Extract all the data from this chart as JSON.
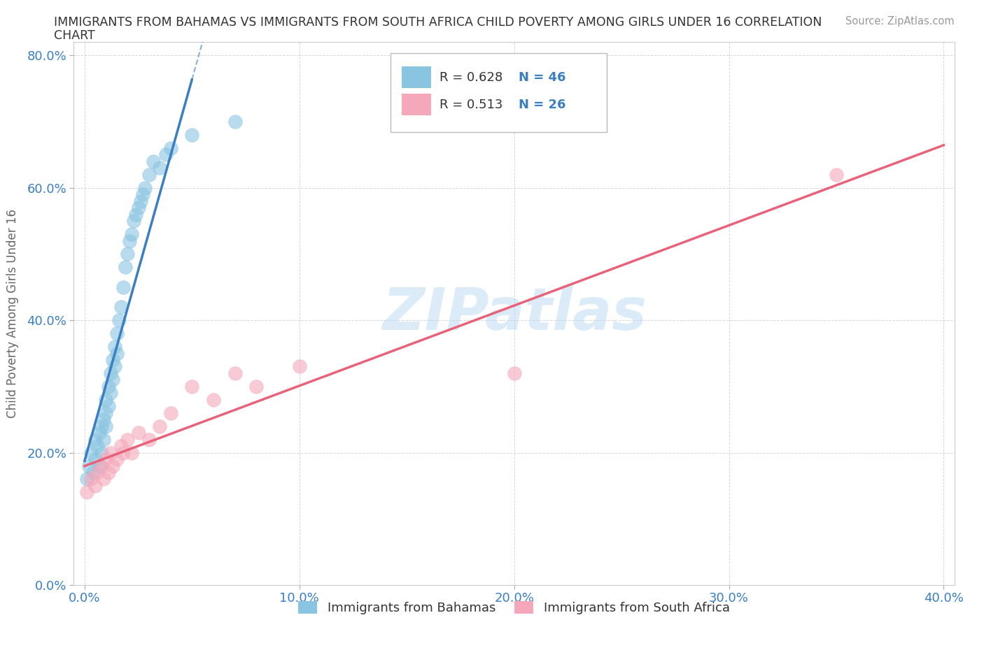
{
  "title_line1": "IMMIGRANTS FROM BAHAMAS VS IMMIGRANTS FROM SOUTH AFRICA CHILD POVERTY AMONG GIRLS UNDER 16 CORRELATION",
  "title_line2": "CHART",
  "source": "Source: ZipAtlas.com",
  "ylabel": "Child Poverty Among Girls Under 16",
  "legend_r1": "R = 0.628",
  "legend_n1": "N = 46",
  "legend_r2": "R = 0.513",
  "legend_n2": "N = 26",
  "legend_label1": "Immigrants from Bahamas",
  "legend_label2": "Immigrants from South Africa",
  "color_blue": "#89c4e1",
  "color_pink": "#f4a8ba",
  "color_blue_line": "#3a7fc1",
  "color_pink_line": "#e8637a",
  "color_blue_text": "#3a7fc1",
  "watermark": "ZIPatlas",
  "xlim": [
    0.0,
    0.4
  ],
  "ylim": [
    0.0,
    0.8
  ],
  "xticks": [
    0.0,
    0.1,
    0.2,
    0.3,
    0.4
  ],
  "yticks": [
    0.0,
    0.2,
    0.4,
    0.6,
    0.8
  ],
  "bahamas_x": [
    0.001,
    0.002,
    0.003,
    0.004,
    0.005,
    0.005,
    0.006,
    0.007,
    0.007,
    0.008,
    0.008,
    0.009,
    0.009,
    0.01,
    0.01,
    0.01,
    0.011,
    0.011,
    0.012,
    0.012,
    0.013,
    0.013,
    0.014,
    0.014,
    0.015,
    0.015,
    0.016,
    0.017,
    0.018,
    0.019,
    0.02,
    0.021,
    0.022,
    0.023,
    0.024,
    0.025,
    0.026,
    0.027,
    0.028,
    0.03,
    0.032,
    0.035,
    0.038,
    0.04,
    0.05,
    0.07
  ],
  "bahamas_y": [
    0.16,
    0.18,
    0.2,
    0.17,
    0.19,
    0.22,
    0.21,
    0.23,
    0.18,
    0.24,
    0.2,
    0.25,
    0.22,
    0.26,
    0.28,
    0.24,
    0.27,
    0.3,
    0.29,
    0.32,
    0.31,
    0.34,
    0.33,
    0.36,
    0.35,
    0.38,
    0.4,
    0.42,
    0.45,
    0.48,
    0.5,
    0.52,
    0.53,
    0.55,
    0.56,
    0.57,
    0.58,
    0.59,
    0.6,
    0.62,
    0.64,
    0.63,
    0.65,
    0.66,
    0.68,
    0.7
  ],
  "sa_x": [
    0.001,
    0.003,
    0.005,
    0.006,
    0.008,
    0.009,
    0.01,
    0.011,
    0.012,
    0.013,
    0.015,
    0.017,
    0.018,
    0.02,
    0.022,
    0.025,
    0.03,
    0.035,
    0.04,
    0.05,
    0.06,
    0.07,
    0.08,
    0.1,
    0.2,
    0.35
  ],
  "sa_y": [
    0.14,
    0.16,
    0.15,
    0.17,
    0.18,
    0.16,
    0.19,
    0.17,
    0.2,
    0.18,
    0.19,
    0.21,
    0.2,
    0.22,
    0.2,
    0.23,
    0.22,
    0.24,
    0.26,
    0.3,
    0.28,
    0.32,
    0.3,
    0.33,
    0.32,
    0.62
  ]
}
